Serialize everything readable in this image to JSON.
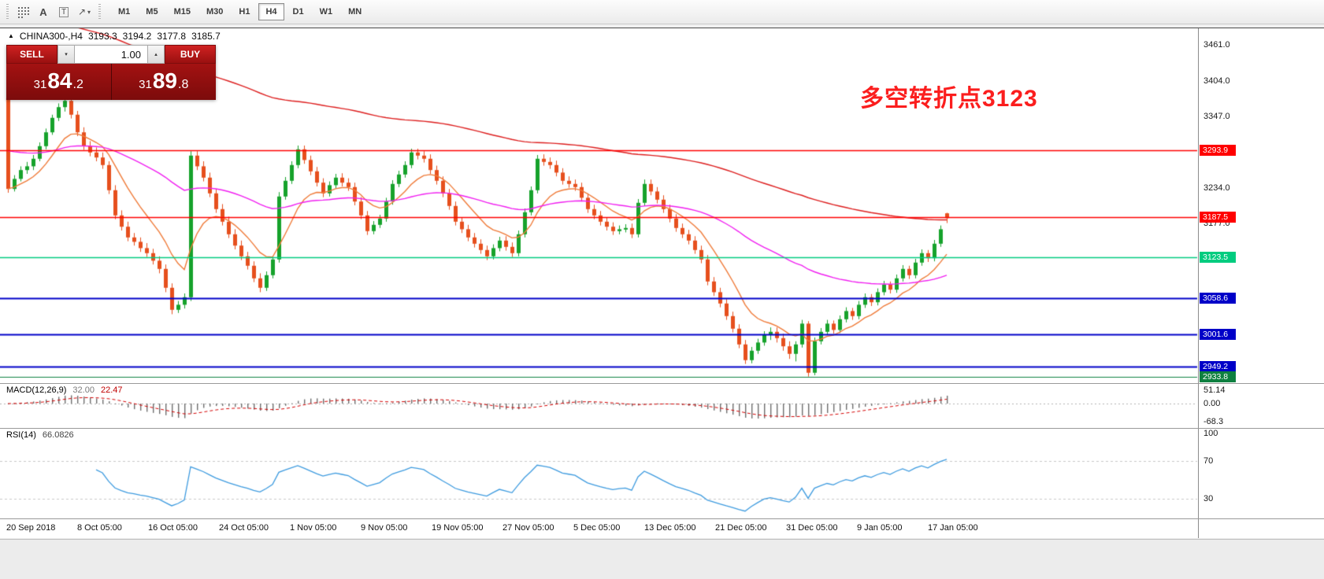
{
  "toolbar": {
    "icon_a": "A",
    "icon_t": "T",
    "icon_arrow": "↗",
    "icon_caret": "▾",
    "timeframes": [
      {
        "label": "M1",
        "active": false
      },
      {
        "label": "M5",
        "active": false
      },
      {
        "label": "M15",
        "active": false
      },
      {
        "label": "M30",
        "active": false
      },
      {
        "label": "H1",
        "active": false
      },
      {
        "label": "H4",
        "active": true
      },
      {
        "label": "D1",
        "active": false
      },
      {
        "label": "W1",
        "active": false
      },
      {
        "label": "MN",
        "active": false
      }
    ]
  },
  "chart": {
    "marker": "▲",
    "symbol": "CHINA300-,H4",
    "open": "3193.3",
    "high": "3194.2",
    "low": "3177.8",
    "close": "3185.7",
    "annotation": "多空转折点3123",
    "annotation_color": "#fb1e1e"
  },
  "trade": {
    "sell_label": "SELL",
    "buy_label": "BUY",
    "volume": "1.00",
    "caret_down": "▾",
    "caret_up": "▴",
    "sell_price": "3184.2",
    "buy_price": "3189.8",
    "sell_prefix": "31",
    "sell_big": "84",
    "sell_frac": ".2",
    "buy_prefix": "31",
    "buy_big": "89",
    "buy_frac": ".8"
  },
  "indicators": {
    "macd": {
      "label": "MACD(12,26,9)",
      "value_main": "32.00",
      "value_signal": "22.47",
      "scale": [
        {
          "label": "51.14",
          "value": 51.14
        },
        {
          "label": "0.00",
          "value": 0
        },
        {
          "label": "-68.3",
          "value": -68.3
        }
      ]
    },
    "rsi": {
      "label": "RSI(14)",
      "value": "66.0826",
      "scale": [
        {
          "label": "100",
          "value": 100
        },
        {
          "label": "70",
          "value": 70
        },
        {
          "label": "30",
          "value": 30
        }
      ]
    }
  },
  "chart_data": {
    "type": "candlestick",
    "symbol": "CHINA300-",
    "timeframe": "H4",
    "current_bar": {
      "open": 3193.3,
      "high": 3194.2,
      "low": 3177.8,
      "close": 3185.7
    },
    "bid": 3184.2,
    "ask": 3189.8,
    "y_axis": {
      "min": 2933.8,
      "max": 3461.0,
      "ticks": [
        {
          "label": "3461.0",
          "price": 3461.0
        },
        {
          "label": "3404.0",
          "price": 3404.0
        },
        {
          "label": "3347.0",
          "price": 3347.0
        },
        {
          "label": "3234.0",
          "price": 3234.0
        },
        {
          "label": "3177.0",
          "price": 3177.0
        }
      ]
    },
    "x_labels": [
      "20 Sep 2018",
      "8 Oct 05:00",
      "16 Oct 05:00",
      "24 Oct 05:00",
      "1 Nov 05:00",
      "9 Nov 05:00",
      "19 Nov 05:00",
      "27 Nov 05:00",
      "5 Dec 05:00",
      "13 Dec 05:00",
      "21 Dec 05:00",
      "31 Dec 05:00",
      "9 Jan 05:00",
      "17 Jan 05:00"
    ],
    "horizontal_lines": [
      {
        "label": "3293.9",
        "price": 3293.9,
        "color": "#ff0000",
        "width": 1.4
      },
      {
        "label": "3187.5",
        "price": 3187.5,
        "color": "#ff0000",
        "width": 1.4
      },
      {
        "label": "3123.5",
        "price": 3123.5,
        "color": "#00cc7f",
        "width": 1.6
      },
      {
        "label": "3058.6",
        "price": 3058.6,
        "color": "#0000c8",
        "width": 2
      },
      {
        "label": "3001.6",
        "price": 3001.6,
        "color": "#0000c8",
        "width": 2
      },
      {
        "label": "2949.2",
        "price": 2949.2,
        "color": "#0000c8",
        "width": 2
      },
      {
        "label": "2933.8",
        "price": 2933.8,
        "color": "#0e8040",
        "width": 1
      }
    ],
    "moving_averages": [
      {
        "name": "ma-slow",
        "color": "#dd1f1f",
        "period": 150,
        "seed": 3520
      },
      {
        "name": "ma-mid",
        "color": "#f01ff0",
        "period": 55,
        "seed": 3295
      },
      {
        "name": "ma-fast",
        "color": "#ef7a38",
        "period": 10
      }
    ],
    "macd": {
      "fast": 12,
      "slow": 26,
      "signal": 9,
      "current_histogram": 32.0,
      "current_signal": 22.47,
      "range": [
        -68.3,
        51.14
      ]
    },
    "rsi": {
      "period": 14,
      "current": 66.0826,
      "levels": [
        70,
        30
      ]
    },
    "colors": {
      "up": "#16a22b",
      "down": "#e64f1d",
      "macd_hist": "#6e6e6e",
      "macd_signal": "#d40000",
      "rsi": "#3e9bdf"
    },
    "ohlc": [
      [
        3376,
        3382,
        3226,
        3232
      ],
      [
        3232,
        3254,
        3228,
        3248
      ],
      [
        3248,
        3268,
        3244,
        3262
      ],
      [
        3262,
        3275,
        3256,
        3268
      ],
      [
        3268,
        3286,
        3262,
        3280
      ],
      [
        3280,
        3306,
        3276,
        3300
      ],
      [
        3300,
        3328,
        3295,
        3322
      ],
      [
        3322,
        3350,
        3318,
        3345
      ],
      [
        3345,
        3368,
        3340,
        3362
      ],
      [
        3362,
        3380,
        3355,
        3372
      ],
      [
        3372,
        3378,
        3344,
        3350
      ],
      [
        3350,
        3356,
        3316,
        3322
      ],
      [
        3322,
        3330,
        3294,
        3300
      ],
      [
        3300,
        3308,
        3284,
        3290
      ],
      [
        3290,
        3298,
        3276,
        3282
      ],
      [
        3282,
        3290,
        3264,
        3270
      ],
      [
        3270,
        3276,
        3224,
        3230
      ],
      [
        3230,
        3238,
        3184,
        3190
      ],
      [
        3190,
        3198,
        3166,
        3172
      ],
      [
        3172,
        3180,
        3149,
        3155
      ],
      [
        3155,
        3162,
        3142,
        3148
      ],
      [
        3148,
        3155,
        3132,
        3138
      ],
      [
        3138,
        3146,
        3124,
        3130
      ],
      [
        3130,
        3137,
        3112,
        3118
      ],
      [
        3118,
        3125,
        3098,
        3105
      ],
      [
        3105,
        3112,
        3068,
        3075
      ],
      [
        3075,
        3082,
        3033,
        3040
      ],
      [
        3040,
        3054,
        3035,
        3048
      ],
      [
        3048,
        3066,
        3042,
        3060
      ],
      [
        3060,
        3292,
        3054,
        3285
      ],
      [
        3285,
        3292,
        3262,
        3268
      ],
      [
        3268,
        3276,
        3244,
        3250
      ],
      [
        3250,
        3258,
        3219,
        3225
      ],
      [
        3225,
        3232,
        3194,
        3200
      ],
      [
        3200,
        3208,
        3174,
        3180
      ],
      [
        3180,
        3188,
        3154,
        3160
      ],
      [
        3160,
        3168,
        3136,
        3142
      ],
      [
        3142,
        3150,
        3119,
        3125
      ],
      [
        3125,
        3132,
        3104,
        3110
      ],
      [
        3110,
        3117,
        3084,
        3090
      ],
      [
        3090,
        3098,
        3068,
        3075
      ],
      [
        3075,
        3101,
        3070,
        3095
      ],
      [
        3095,
        3126,
        3090,
        3120
      ],
      [
        3120,
        3227,
        3115,
        3220
      ],
      [
        3220,
        3251,
        3215,
        3245
      ],
      [
        3245,
        3276,
        3240,
        3270
      ],
      [
        3270,
        3301,
        3265,
        3295
      ],
      [
        3295,
        3301,
        3272,
        3278
      ],
      [
        3278,
        3285,
        3254,
        3260
      ],
      [
        3260,
        3267,
        3236,
        3242
      ],
      [
        3242,
        3249,
        3219,
        3225
      ],
      [
        3225,
        3244,
        3220,
        3238
      ],
      [
        3238,
        3256,
        3233,
        3250
      ],
      [
        3250,
        3257,
        3236,
        3242
      ],
      [
        3242,
        3249,
        3229,
        3235
      ],
      [
        3235,
        3242,
        3206,
        3212
      ],
      [
        3212,
        3219,
        3184,
        3190
      ],
      [
        3190,
        3197,
        3159,
        3165
      ],
      [
        3165,
        3181,
        3160,
        3175
      ],
      [
        3175,
        3191,
        3170,
        3185
      ],
      [
        3185,
        3218,
        3180,
        3212
      ],
      [
        3212,
        3246,
        3207,
        3240
      ],
      [
        3240,
        3261,
        3235,
        3255
      ],
      [
        3255,
        3276,
        3250,
        3270
      ],
      [
        3270,
        3296,
        3265,
        3290
      ],
      [
        3290,
        3296,
        3279,
        3285
      ],
      [
        3285,
        3292,
        3274,
        3280
      ],
      [
        3280,
        3287,
        3256,
        3262
      ],
      [
        3262,
        3269,
        3239,
        3245
      ],
      [
        3245,
        3252,
        3219,
        3225
      ],
      [
        3225,
        3232,
        3199,
        3205
      ],
      [
        3205,
        3212,
        3174,
        3180
      ],
      [
        3180,
        3187,
        3162,
        3168
      ],
      [
        3168,
        3175,
        3149,
        3155
      ],
      [
        3155,
        3162,
        3139,
        3145
      ],
      [
        3145,
        3152,
        3129,
        3135
      ],
      [
        3135,
        3142,
        3119,
        3125
      ],
      [
        3125,
        3144,
        3120,
        3138
      ],
      [
        3138,
        3156,
        3133,
        3150
      ],
      [
        3150,
        3157,
        3134,
        3140
      ],
      [
        3140,
        3147,
        3124,
        3130
      ],
      [
        3130,
        3166,
        3125,
        3160
      ],
      [
        3160,
        3201,
        3155,
        3195
      ],
      [
        3195,
        3236,
        3190,
        3230
      ],
      [
        3230,
        3286,
        3225,
        3280
      ],
      [
        3280,
        3287,
        3269,
        3275
      ],
      [
        3275,
        3282,
        3264,
        3270
      ],
      [
        3270,
        3277,
        3252,
        3258
      ],
      [
        3258,
        3265,
        3239,
        3245
      ],
      [
        3245,
        3252,
        3234,
        3240
      ],
      [
        3240,
        3247,
        3229,
        3235
      ],
      [
        3235,
        3242,
        3212,
        3218
      ],
      [
        3218,
        3225,
        3194,
        3200
      ],
      [
        3200,
        3207,
        3184,
        3190
      ],
      [
        3190,
        3197,
        3174,
        3180
      ],
      [
        3180,
        3187,
        3166,
        3172
      ],
      [
        3172,
        3179,
        3159,
        3165
      ],
      [
        3165,
        3174,
        3160,
        3168
      ],
      [
        3168,
        3176,
        3163,
        3170
      ],
      [
        3170,
        3177,
        3154,
        3160
      ],
      [
        3160,
        3216,
        3155,
        3210
      ],
      [
        3210,
        3247,
        3205,
        3240
      ],
      [
        3240,
        3247,
        3222,
        3228
      ],
      [
        3228,
        3235,
        3209,
        3215
      ],
      [
        3215,
        3222,
        3194,
        3200
      ],
      [
        3200,
        3207,
        3179,
        3185
      ],
      [
        3185,
        3192,
        3164,
        3170
      ],
      [
        3170,
        3177,
        3154,
        3160
      ],
      [
        3160,
        3167,
        3144,
        3150
      ],
      [
        3150,
        3157,
        3129,
        3135
      ],
      [
        3135,
        3142,
        3114,
        3120
      ],
      [
        3120,
        3127,
        3079,
        3085
      ],
      [
        3085,
        3092,
        3062,
        3068
      ],
      [
        3068,
        3075,
        3044,
        3050
      ],
      [
        3050,
        3057,
        3024,
        3030
      ],
      [
        3030,
        3037,
        3004,
        3010
      ],
      [
        3010,
        3017,
        2979,
        2985
      ],
      [
        2985,
        2992,
        2954,
        2960
      ],
      [
        2960,
        2981,
        2955,
        2975
      ],
      [
        2975,
        2994,
        2970,
        2988
      ],
      [
        2988,
        3006,
        2983,
        3000
      ],
      [
        3000,
        3012,
        2992,
        3005
      ],
      [
        3005,
        3012,
        2988,
        2995
      ],
      [
        2995,
        3002,
        2975,
        2982
      ],
      [
        2982,
        2990,
        2962,
        2970
      ],
      [
        2970,
        2990,
        2958,
        2985
      ],
      [
        2985,
        3024,
        2980,
        3018
      ],
      [
        3018,
        3022,
        2934,
        2940
      ],
      [
        2940,
        2996,
        2936,
        2990
      ],
      [
        2990,
        3011,
        2985,
        3005
      ],
      [
        3005,
        3024,
        3000,
        3018
      ],
      [
        3018,
        3023,
        3002,
        3008
      ],
      [
        3008,
        3031,
        3003,
        3025
      ],
      [
        3025,
        3044,
        3020,
        3038
      ],
      [
        3038,
        3043,
        3024,
        3030
      ],
      [
        3030,
        3054,
        3025,
        3048
      ],
      [
        3048,
        3066,
        3043,
        3060
      ],
      [
        3060,
        3065,
        3046,
        3052
      ],
      [
        3052,
        3074,
        3047,
        3068
      ],
      [
        3068,
        3086,
        3063,
        3080
      ],
      [
        3080,
        3085,
        3066,
        3072
      ],
      [
        3072,
        3096,
        3067,
        3090
      ],
      [
        3090,
        3111,
        3085,
        3105
      ],
      [
        3105,
        3110,
        3089,
        3095
      ],
      [
        3095,
        3121,
        3090,
        3115
      ],
      [
        3115,
        3136,
        3110,
        3130
      ],
      [
        3130,
        3135,
        3116,
        3122
      ],
      [
        3122,
        3151,
        3117,
        3145
      ],
      [
        3145,
        3174,
        3140,
        3168
      ],
      [
        3193.3,
        3194.2,
        3177.8,
        3185.7
      ]
    ]
  }
}
